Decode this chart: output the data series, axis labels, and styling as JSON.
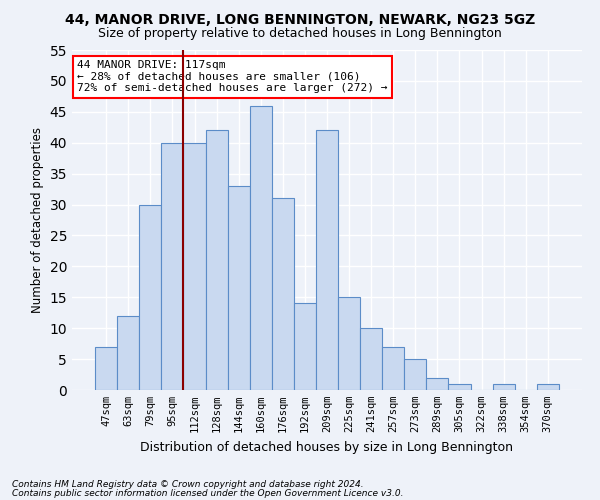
{
  "title1": "44, MANOR DRIVE, LONG BENNINGTON, NEWARK, NG23 5GZ",
  "title2": "Size of property relative to detached houses in Long Bennington",
  "xlabel": "Distribution of detached houses by size in Long Bennington",
  "ylabel": "Number of detached properties",
  "categories": [
    "47sqm",
    "63sqm",
    "79sqm",
    "95sqm",
    "112sqm",
    "128sqm",
    "144sqm",
    "160sqm",
    "176sqm",
    "192sqm",
    "209sqm",
    "225sqm",
    "241sqm",
    "257sqm",
    "273sqm",
    "289sqm",
    "305sqm",
    "322sqm",
    "338sqm",
    "354sqm",
    "370sqm"
  ],
  "values": [
    7,
    12,
    30,
    40,
    40,
    42,
    33,
    46,
    31,
    14,
    42,
    15,
    10,
    7,
    5,
    2,
    1,
    0,
    1,
    0,
    1
  ],
  "bar_color": "#c9d9f0",
  "bar_edge_color": "#5b8cc8",
  "vline_x": 3.5,
  "annotation_text": "44 MANOR DRIVE: 117sqm\n← 28% of detached houses are smaller (106)\n72% of semi-detached houses are larger (272) →",
  "annotation_box_color": "white",
  "annotation_box_edge_color": "red",
  "vline_color": "#8b0000",
  "ylim": [
    0,
    55
  ],
  "yticks": [
    0,
    5,
    10,
    15,
    20,
    25,
    30,
    35,
    40,
    45,
    50,
    55
  ],
  "footnote1": "Contains HM Land Registry data © Crown copyright and database right 2024.",
  "footnote2": "Contains public sector information licensed under the Open Government Licence v3.0.",
  "background_color": "#eef2f9",
  "grid_color": "white"
}
